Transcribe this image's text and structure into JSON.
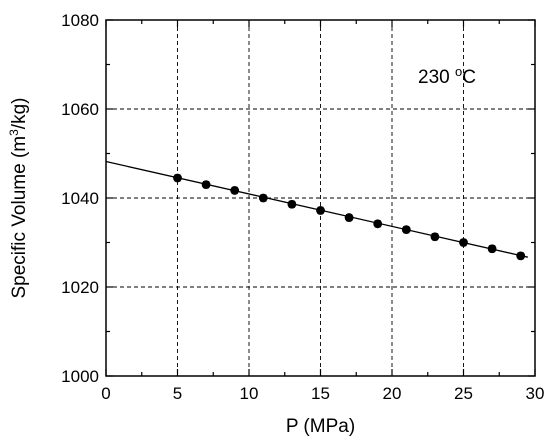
{
  "chart_data": {
    "type": "scatter",
    "title": "",
    "annotation": {
      "text_main": "230 ",
      "text_sup": "o",
      "text_unit": "C"
    },
    "xlabel": "P (MPa)",
    "ylabel": {
      "prefix": "Specific Volume (m",
      "sup": "3",
      "suffix": "/kg)"
    },
    "xlim": [
      0,
      30
    ],
    "ylim": [
      1000,
      1080
    ],
    "xticks": [
      0,
      5,
      10,
      15,
      20,
      25,
      30
    ],
    "yticks": [
      1000,
      1020,
      1040,
      1060,
      1080
    ],
    "xtick_labels": [
      "0",
      "5",
      "10",
      "15",
      "20",
      "25",
      "30"
    ],
    "ytick_labels": [
      "1000",
      "1020",
      "1040",
      "1060",
      "1080"
    ],
    "grid": true,
    "series": [
      {
        "x": [
          5,
          7,
          9,
          11,
          13,
          15,
          17,
          19,
          21,
          23,
          25,
          27,
          29
        ],
        "y": [
          1044.5,
          1043.0,
          1041.7,
          1040.0,
          1038.6,
          1037.2,
          1035.6,
          1034.2,
          1032.9,
          1031.3,
          1030.0,
          1028.6,
          1027.0
        ],
        "err": [
          0.7,
          0.7,
          0.7,
          0.7,
          0.7,
          0.7,
          0.7,
          0.7,
          0.7,
          0.7,
          0.7,
          0.7,
          0.7
        ]
      }
    ],
    "fit_line": {
      "x": [
        0,
        29.5
      ],
      "y": [
        1048.2,
        1026.7
      ]
    }
  }
}
